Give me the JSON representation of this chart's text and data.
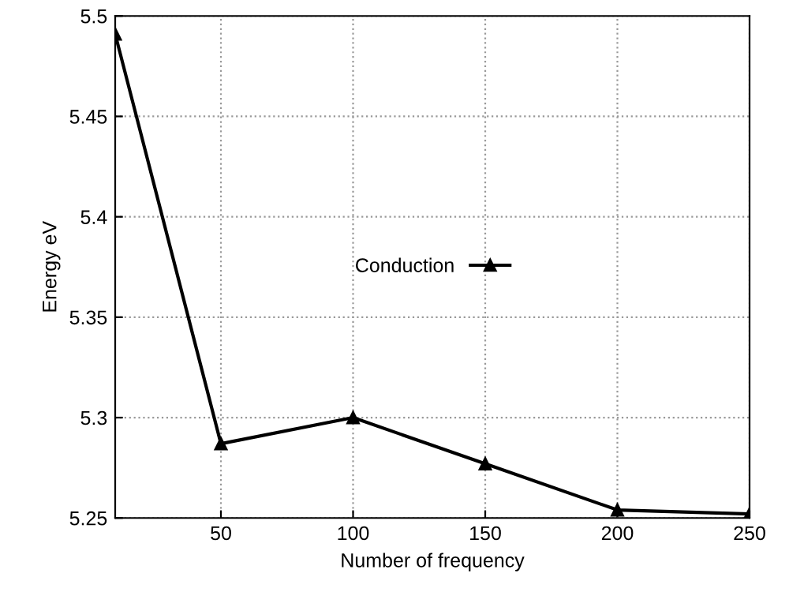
{
  "chart_data": {
    "type": "line",
    "xlabel": "Number of frequency",
    "ylabel": "Energy eV",
    "x": [
      10,
      50,
      100,
      150,
      200,
      250
    ],
    "series": [
      {
        "name": "Conduction",
        "color": "#000000",
        "values": [
          5.491,
          5.287,
          5.3,
          5.277,
          5.254,
          5.252
        ]
      }
    ],
    "xlim": [
      10,
      250
    ],
    "xticks": [
      50,
      100,
      150,
      200,
      250
    ],
    "ylim": [
      5.25,
      5.5
    ],
    "yticks": [
      5.25,
      5.3,
      5.35,
      5.4,
      5.45,
      5.5
    ],
    "grid": true,
    "legend": "center",
    "marker": "triangle",
    "line_style": "solid"
  }
}
